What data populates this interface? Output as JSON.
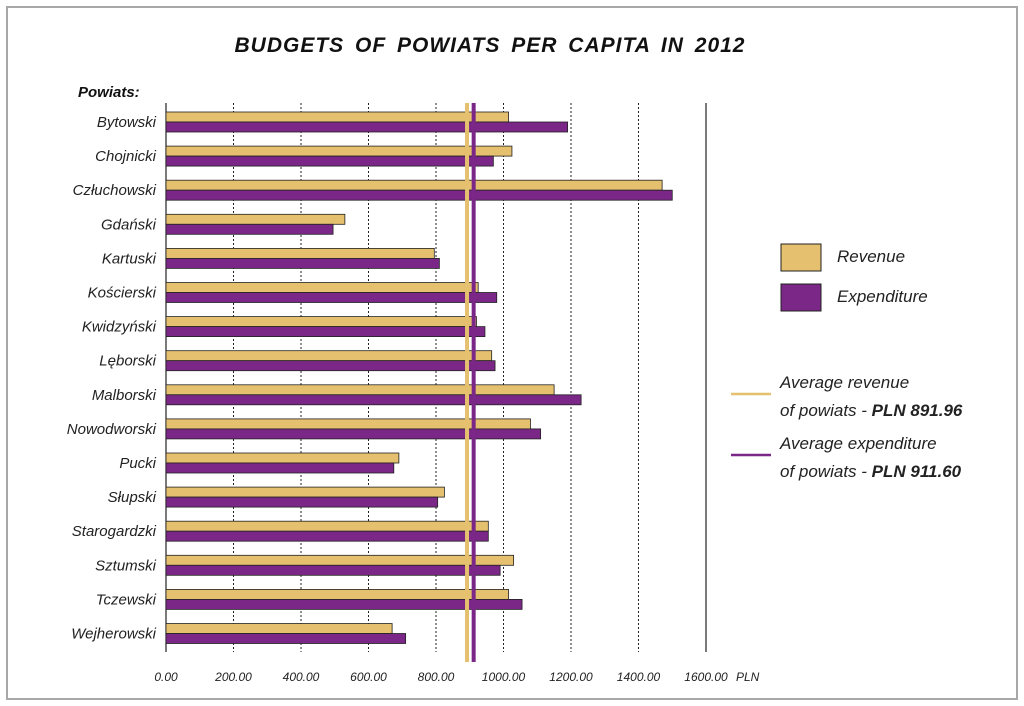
{
  "chart_data": {
    "type": "bar",
    "orientation": "horizontal",
    "title": "BUDGETS OF POWIATS PER CAPITA IN 2012",
    "ylabel": "Powiats:",
    "xunit": "PLN",
    "xlim": [
      0,
      1600
    ],
    "xticks": [
      "0.00",
      "200.00",
      "400.00",
      "600.00",
      "800.00",
      "1000.00",
      "1200.00",
      "1400.00",
      "1600.00"
    ],
    "grid": true,
    "categories": [
      "Bytowski",
      "Chojnicki",
      "Człuchowski",
      "Gdański",
      "Kartuski",
      "Kościerski",
      "Kwidzyński",
      "Lęborski",
      "Malborski",
      "Nowodworski",
      "Pucki",
      "Słupski",
      "Starogardzki",
      "Sztumski",
      "Tczewski",
      "Wejherowski"
    ],
    "series": [
      {
        "name": "Revenue",
        "color": "#e5c06f",
        "values": [
          1015,
          1025,
          1470,
          530,
          795,
          925,
          920,
          965,
          1150,
          1080,
          690,
          825,
          955,
          1030,
          1015,
          670
        ]
      },
      {
        "name": "Expenditure",
        "color": "#7b2787",
        "values": [
          1190,
          970,
          1500,
          495,
          810,
          980,
          945,
          975,
          1230,
          1110,
          675,
          805,
          955,
          990,
          1055,
          710
        ]
      }
    ],
    "reference_lines": [
      {
        "label": "Average revenue",
        "label2": "of powiats - ",
        "value_text": "PLN 891.96",
        "value": 891.96,
        "color": "#e5c06f"
      },
      {
        "label": "Average expenditure",
        "label2": "of powiats - ",
        "value_text": "PLN 911.60",
        "value": 911.6,
        "color": "#7b2787"
      }
    ],
    "legend_position": "right"
  }
}
